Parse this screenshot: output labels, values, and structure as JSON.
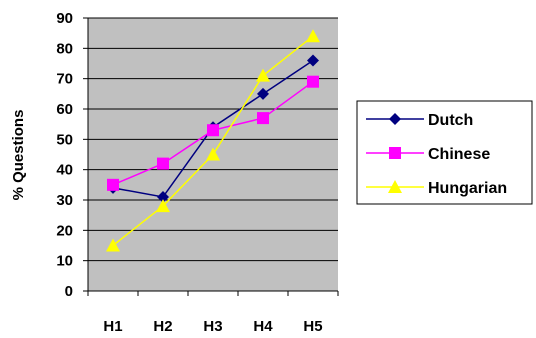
{
  "chart_data": {
    "type": "line",
    "categories": [
      "H1",
      "H2",
      "H3",
      "H4",
      "H5"
    ],
    "ylabel": "% Questions",
    "xlabel": "",
    "ylim": [
      0,
      90
    ],
    "yticks": [
      "0",
      "10",
      "20",
      "30",
      "40",
      "50",
      "60",
      "70",
      "80",
      "90"
    ],
    "grid": "horizontal",
    "plot_background": "#c0c0c0",
    "legend_position": "right",
    "series": [
      {
        "name": "Dutch",
        "values": [
          34,
          31,
          54,
          65,
          76
        ],
        "color": "#000080",
        "marker": "diamond"
      },
      {
        "name": "Chinese",
        "values": [
          35,
          42,
          53,
          57,
          69
        ],
        "color": "#ff00ff",
        "marker": "square"
      },
      {
        "name": "Hungarian",
        "values": [
          15,
          28,
          45,
          71,
          84
        ],
        "color": "#ffff00",
        "marker": "triangle"
      }
    ]
  }
}
